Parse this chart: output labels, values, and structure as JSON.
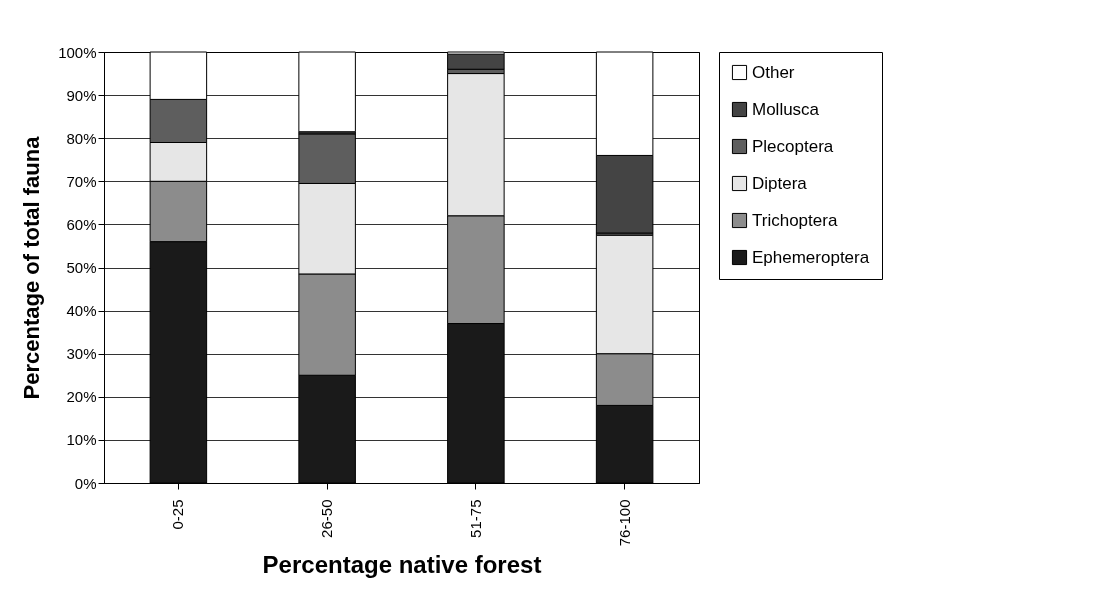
{
  "chart_data": {
    "type": "bar",
    "stacked": true,
    "xlabel": "Percentage native forest",
    "ylabel": "Percentage of total fauna",
    "categories": [
      "0-25",
      "26-50",
      "51-75",
      "76-100"
    ],
    "series": [
      {
        "name": "Ephemeroptera",
        "color": "#1a1a1a",
        "values": [
          56,
          25,
          37,
          18
        ]
      },
      {
        "name": "Trichoptera",
        "color": "#8c8c8c",
        "values": [
          14,
          23.5,
          25,
          12
        ]
      },
      {
        "name": "Diptera",
        "color": "#e6e6e6",
        "values": [
          9,
          21,
          33,
          27.5
        ]
      },
      {
        "name": "Plecoptera",
        "color": "#5e5e5e",
        "values": [
          10,
          11.5,
          1,
          0.5
        ]
      },
      {
        "name": "Mollusca",
        "color": "#444444",
        "values": [
          0,
          0.5,
          3.5,
          18
        ]
      },
      {
        "name": "Other",
        "color": "#ffffff",
        "values": [
          11,
          18.5,
          0.5,
          24
        ]
      }
    ],
    "ylim": [
      0,
      100
    ],
    "yticks": [
      {
        "value": 0,
        "label": "0%"
      },
      {
        "value": 10,
        "label": "10%"
      },
      {
        "value": 20,
        "label": "20%"
      },
      {
        "value": 30,
        "label": "30%"
      },
      {
        "value": 40,
        "label": "40%"
      },
      {
        "value": 50,
        "label": "50%"
      },
      {
        "value": 60,
        "label": "60%"
      },
      {
        "value": 70,
        "label": "70%"
      },
      {
        "value": 80,
        "label": "80%"
      },
      {
        "value": 90,
        "label": "90%"
      },
      {
        "value": 100,
        "label": "100%"
      }
    ],
    "grid": "y",
    "legend": "right"
  }
}
